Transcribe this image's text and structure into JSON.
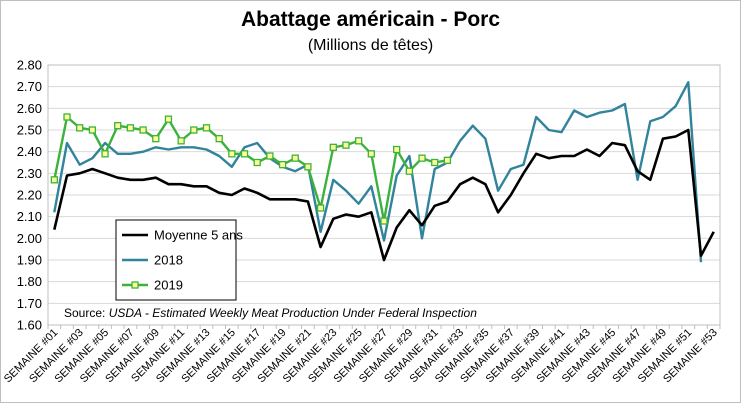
{
  "chart_data": {
    "type": "line",
    "title": "Abattage américain - Porc",
    "subtitle": "(Millions de têtes)",
    "source_label": "Source:",
    "source_text": "USDA - Estimated Weekly Meat Production Under Federal Inspection",
    "ylim": [
      1.6,
      2.8
    ],
    "yticks": [
      "1.60",
      "1.70",
      "1.80",
      "1.90",
      "2.00",
      "2.10",
      "2.20",
      "2.30",
      "2.40",
      "2.50",
      "2.60",
      "2.70",
      "2.80"
    ],
    "x_labels": [
      "SEMAINE #01",
      "SEMAINE #03",
      "SEMAINE #05",
      "SEMAINE #07",
      "SEMAINE #09",
      "SEMAINE #11",
      "SEMAINE #13",
      "SEMAINE #15",
      "SEMAINE #17",
      "SEMAINE #19",
      "SEMAINE #21",
      "SEMAINE #23",
      "SEMAINE #25",
      "SEMAINE #27",
      "SEMAINE #29",
      "SEMAINE #31",
      "SEMAINE #33",
      "SEMAINE #35",
      "SEMAINE #37",
      "SEMAINE #39",
      "SEMAINE #41",
      "SEMAINE #43",
      "SEMAINE #45",
      "SEMAINE #47",
      "SEMAINE #49",
      "SEMAINE #51",
      "SEMAINE #53"
    ],
    "grid": true,
    "legend_position": "bottom-left",
    "series": [
      {
        "name": "Moyenne 5 ans",
        "color": "#000000",
        "marker": "none",
        "values": [
          2.04,
          2.29,
          2.3,
          2.32,
          2.3,
          2.28,
          2.27,
          2.27,
          2.28,
          2.25,
          2.25,
          2.24,
          2.24,
          2.21,
          2.2,
          2.23,
          2.21,
          2.18,
          2.18,
          2.18,
          2.17,
          1.96,
          2.09,
          2.11,
          2.1,
          2.12,
          1.9,
          2.05,
          2.13,
          2.06,
          2.15,
          2.17,
          2.25,
          2.28,
          2.25,
          2.12,
          2.2,
          2.3,
          2.39,
          2.37,
          2.38,
          2.38,
          2.41,
          2.38,
          2.44,
          2.43,
          2.31,
          2.27,
          2.46,
          2.47,
          2.5,
          1.92,
          2.03
        ]
      },
      {
        "name": "2018",
        "color": "#31849b",
        "marker": "none",
        "values": [
          2.12,
          2.44,
          2.34,
          2.37,
          2.44,
          2.39,
          2.39,
          2.4,
          2.42,
          2.41,
          2.42,
          2.42,
          2.41,
          2.38,
          2.33,
          2.42,
          2.44,
          2.37,
          2.33,
          2.31,
          2.34,
          2.03,
          2.27,
          2.22,
          2.16,
          2.24,
          1.99,
          2.29,
          2.38,
          2.0,
          2.32,
          2.35,
          2.45,
          2.52,
          2.46,
          2.22,
          2.32,
          2.34,
          2.56,
          2.5,
          2.49,
          2.59,
          2.56,
          2.58,
          2.59,
          2.62,
          2.27,
          2.54,
          2.56,
          2.61,
          2.72,
          1.89
        ]
      },
      {
        "name": "2019",
        "color": "#3cb23c",
        "marker": "square",
        "values": [
          2.27,
          2.56,
          2.51,
          2.5,
          2.39,
          2.52,
          2.51,
          2.5,
          2.46,
          2.55,
          2.45,
          2.5,
          2.51,
          2.46,
          2.39,
          2.39,
          2.35,
          2.38,
          2.34,
          2.37,
          2.33,
          2.14,
          2.42,
          2.43,
          2.45,
          2.39,
          2.08,
          2.41,
          2.31,
          2.37,
          2.35,
          2.36
        ]
      }
    ]
  }
}
